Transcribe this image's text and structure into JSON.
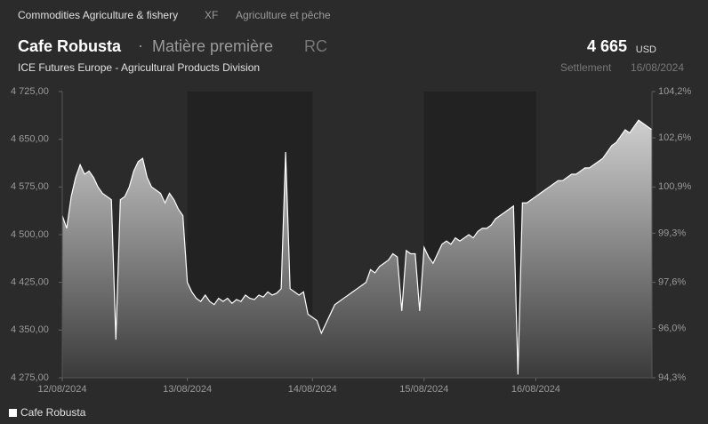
{
  "header": {
    "breadcrumb": "Commodities Agriculture & fishery",
    "code": "XF",
    "category": "Agriculture et pêche",
    "name": "Cafe Robusta",
    "separator": "·",
    "kind": "Matière première",
    "ticker": "RC",
    "price": "4 665",
    "currency": "USD",
    "exchange": "ICE Futures Europe - Agricultural Products Division",
    "price_type": "Settlement",
    "date": "16/08/2024"
  },
  "chart_data": {
    "type": "area",
    "color": "#ffffff",
    "x": [
      0,
      1,
      2,
      3,
      4,
      5,
      6,
      7,
      8,
      9,
      10,
      11,
      12,
      13,
      14,
      15,
      16,
      17,
      18,
      19,
      20,
      21,
      22,
      23,
      24,
      25,
      26,
      27,
      28,
      29,
      30,
      31,
      32,
      33,
      34,
      35,
      36,
      37,
      38,
      39,
      40,
      41,
      42,
      43,
      44,
      45,
      46,
      47,
      48,
      49,
      50,
      51,
      52,
      53,
      54,
      55,
      56,
      57,
      58,
      59,
      60,
      61,
      62,
      63,
      64,
      65,
      66,
      67,
      68,
      69,
      70,
      71,
      72,
      73,
      74,
      75,
      76,
      77,
      78,
      79,
      80,
      81,
      82,
      83,
      84,
      85,
      86,
      87,
      88,
      89,
      90,
      91,
      92,
      93,
      94,
      95,
      96,
      97,
      98,
      99,
      100,
      101,
      102,
      103,
      104,
      105,
      106,
      107,
      108,
      109,
      110,
      111,
      112,
      113,
      114,
      115,
      116,
      117,
      118,
      119,
      120,
      121,
      122,
      123,
      124,
      125,
      126,
      127,
      128,
      129,
      130,
      131,
      132
    ],
    "series": [
      {
        "name": "Cafe Robusta",
        "color": "#ffffff",
        "values": [
          4530,
          4510,
          4560,
          4590,
          4610,
          4595,
          4600,
          4590,
          4575,
          4565,
          4560,
          4555,
          4335,
          4555,
          4560,
          4575,
          4600,
          4615,
          4620,
          4590,
          4575,
          4570,
          4565,
          4550,
          4565,
          4555,
          4540,
          4530,
          4425,
          4410,
          4400,
          4395,
          4405,
          4395,
          4390,
          4400,
          4395,
          4400,
          4392,
          4398,
          4395,
          4405,
          4400,
          4398,
          4405,
          4402,
          4410,
          4405,
          4408,
          4415,
          4630,
          4415,
          4410,
          4405,
          4410,
          4375,
          4370,
          4365,
          4345,
          4360,
          4375,
          4390,
          4395,
          4400,
          4405,
          4410,
          4415,
          4420,
          4425,
          4445,
          4440,
          4450,
          4455,
          4460,
          4470,
          4465,
          4380,
          4475,
          4470,
          4470,
          4380,
          4480,
          4465,
          4455,
          4470,
          4485,
          4490,
          4485,
          4495,
          4490,
          4495,
          4500,
          4495,
          4505,
          4510,
          4510,
          4515,
          4525,
          4530,
          4535,
          4540,
          4545,
          4280,
          4550,
          4550,
          4555,
          4560,
          4565,
          4570,
          4575,
          4580,
          4585,
          4585,
          4590,
          4595,
          4595,
          4600,
          4605,
          4605,
          4610,
          4615,
          4620,
          4630,
          4640,
          4645,
          4655,
          4665,
          4660,
          4670,
          4680,
          4675,
          4670,
          4665
        ]
      }
    ],
    "xlim": [
      0,
      132
    ],
    "xticks": [
      {
        "value": 0,
        "label": "12/08/2024"
      },
      {
        "value": 28,
        "label": "13/08/2024"
      },
      {
        "value": 56,
        "label": "14/08/2024"
      },
      {
        "value": 81,
        "label": "15/08/2024"
      },
      {
        "value": 106,
        "label": "16/08/2024"
      }
    ],
    "ylim": [
      4275,
      4725
    ],
    "yticks": [
      {
        "value": 4275,
        "label": "4 275,00"
      },
      {
        "value": 4350,
        "label": "4 350,00"
      },
      {
        "value": 4425,
        "label": "4 425,00"
      },
      {
        "value": 4500,
        "label": "4 500,00"
      },
      {
        "value": 4575,
        "label": "4 575,00"
      },
      {
        "value": 4650,
        "label": "4 650,00"
      },
      {
        "value": 4725,
        "label": "4 725,00"
      }
    ],
    "y2lim": [
      94.3,
      104.2
    ],
    "y2ticks": [
      {
        "value": 94.3,
        "label": "94,3%"
      },
      {
        "value": 96.0,
        "label": "96,0%"
      },
      {
        "value": 97.6,
        "label": "97,6%"
      },
      {
        "value": 99.3,
        "label": "99,3%"
      },
      {
        "value": 100.9,
        "label": "100,9%"
      },
      {
        "value": 102.6,
        "label": "102,6%"
      },
      {
        "value": 104.2,
        "label": "104,2%"
      }
    ],
    "shaded": [
      [
        28,
        56
      ],
      [
        81,
        106
      ]
    ],
    "legend": "bottom-left"
  }
}
